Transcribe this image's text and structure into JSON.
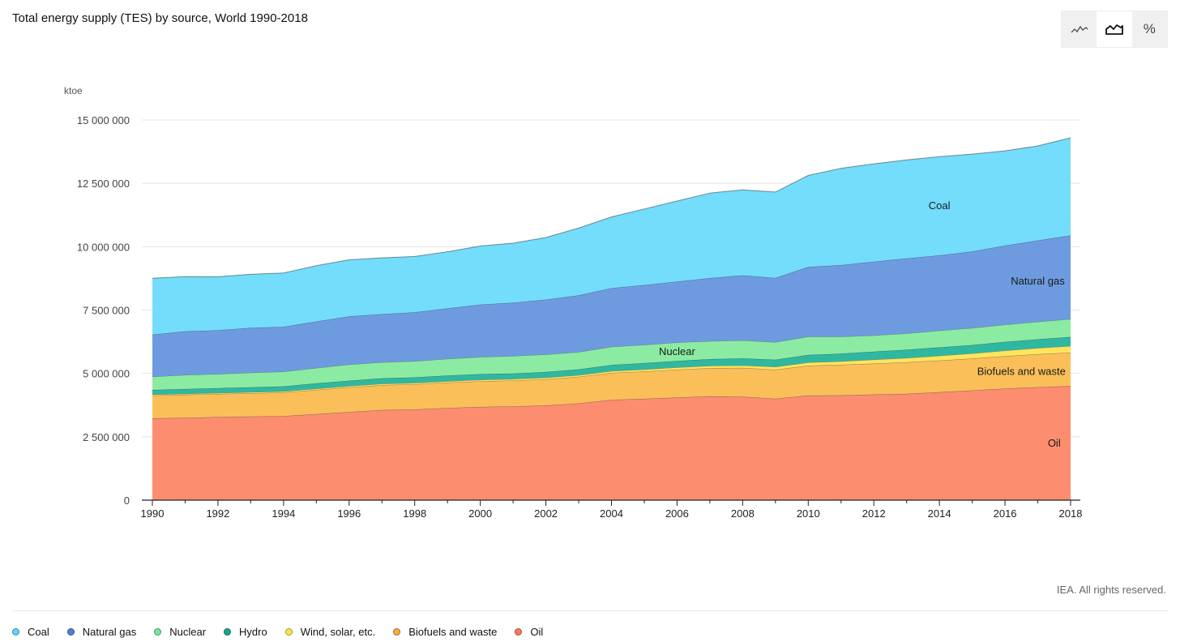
{
  "title": "Total energy supply (TES) by source, World 1990-2018",
  "toggle": {
    "icons": [
      "line-chart-icon",
      "area-chart-icon",
      "percent-icon"
    ],
    "percent_label": "%",
    "active": "area-chart-icon"
  },
  "credit": "IEA. All rights reserved.",
  "chart_data": {
    "type": "area",
    "stacked": true,
    "title": "Total energy supply (TES) by source, World 1990-2018",
    "unit_label": "ktoe",
    "xlabel": "",
    "ylabel": "ktoe",
    "xlim": [
      1990,
      2018
    ],
    "ylim": [
      0,
      15000000
    ],
    "x": [
      1990,
      1991,
      1992,
      1993,
      1994,
      1995,
      1996,
      1997,
      1998,
      1999,
      2000,
      2001,
      2002,
      2003,
      2004,
      2005,
      2006,
      2007,
      2008,
      2009,
      2010,
      2011,
      2012,
      2013,
      2014,
      2015,
      2016,
      2017,
      2018
    ],
    "x_ticks": [
      "1990",
      "1992",
      "1994",
      "1996",
      "1998",
      "2000",
      "2002",
      "2004",
      "2006",
      "2008",
      "2010",
      "2012",
      "2014",
      "2016",
      "2018"
    ],
    "y_ticks": [
      0,
      2500000,
      5000000,
      7500000,
      10000000,
      12500000,
      15000000
    ],
    "y_tick_labels": [
      "0",
      "2 500 000",
      "5 000 000",
      "7 500 000",
      "10 000 000",
      "12 500 000",
      "15 000 000"
    ],
    "grid": true,
    "legend_position": "bottom",
    "series": [
      {
        "name": "Oil",
        "color": "#fc8d6e",
        "values": [
          3230000,
          3250000,
          3280000,
          3300000,
          3320000,
          3400000,
          3480000,
          3560000,
          3580000,
          3640000,
          3680000,
          3700000,
          3740000,
          3820000,
          3960000,
          4000000,
          4050000,
          4100000,
          4080000,
          4000000,
          4130000,
          4140000,
          4170000,
          4200000,
          4260000,
          4330000,
          4400000,
          4460000,
          4500000
        ]
      },
      {
        "name": "Biofuels and waste",
        "color": "#fbbf5a",
        "values": [
          900000,
          910000,
          910000,
          920000,
          930000,
          950000,
          970000,
          980000,
          990000,
          1000000,
          1010000,
          1020000,
          1030000,
          1050000,
          1060000,
          1080000,
          1100000,
          1110000,
          1140000,
          1150000,
          1180000,
          1200000,
          1220000,
          1240000,
          1250000,
          1260000,
          1280000,
          1300000,
          1320000
        ]
      },
      {
        "name": "Wind, solar, etc.",
        "color": "#ffe55c",
        "values": [
          40000,
          40000,
          42000,
          44000,
          46000,
          48000,
          50000,
          52000,
          54000,
          56000,
          58000,
          60000,
          62000,
          66000,
          72000,
          78000,
          85000,
          92000,
          100000,
          110000,
          125000,
          140000,
          155000,
          170000,
          185000,
          200000,
          220000,
          240000,
          260000
        ]
      },
      {
        "name": "Hydro",
        "color": "#2fb8a0",
        "values": [
          180000,
          185000,
          188000,
          192000,
          196000,
          210000,
          214000,
          218000,
          220000,
          222000,
          225000,
          220000,
          225000,
          226000,
          242000,
          250000,
          258000,
          262000,
          273000,
          278000,
          296000,
          300000,
          315000,
          327000,
          335000,
          333000,
          343000,
          348000,
          360000
        ]
      },
      {
        "name": "Nuclear",
        "color": "#8ceba2",
        "values": [
          525000,
          555000,
          555000,
          575000,
          580000,
          610000,
          640000,
          630000,
          640000,
          660000,
          675000,
          690000,
          695000,
          680000,
          720000,
          720000,
          730000,
          710000,
          710000,
          700000,
          720000,
          675000,
          640000,
          645000,
          660000,
          670000,
          680000,
          690000,
          707000
        ]
      },
      {
        "name": "Natural gas",
        "color": "#6e9be0",
        "values": [
          1660000,
          1720000,
          1730000,
          1770000,
          1770000,
          1830000,
          1900000,
          1900000,
          1930000,
          1990000,
          2070000,
          2100000,
          2160000,
          2240000,
          2310000,
          2360000,
          2400000,
          2490000,
          2570000,
          2530000,
          2750000,
          2820000,
          2910000,
          2960000,
          2970000,
          3020000,
          3120000,
          3210000,
          3300000
        ]
      },
      {
        "name": "Coal",
        "color": "#73ddfb",
        "values": [
          2220000,
          2160000,
          2110000,
          2110000,
          2120000,
          2200000,
          2230000,
          2220000,
          2200000,
          2230000,
          2310000,
          2350000,
          2450000,
          2650000,
          2810000,
          3000000,
          3180000,
          3350000,
          3370000,
          3390000,
          3610000,
          3820000,
          3860000,
          3880000,
          3890000,
          3840000,
          3740000,
          3730000,
          3850000
        ]
      }
    ],
    "annotations": [
      {
        "text": "Coal",
        "series": "Coal",
        "x": 2014
      },
      {
        "text": "Natural gas",
        "series": "Natural gas",
        "x": 2017
      },
      {
        "text": "Nuclear",
        "series": "Nuclear",
        "x": 2006
      },
      {
        "text": "Biofuels and waste",
        "series": "Biofuels and waste",
        "x": 2016.5
      },
      {
        "text": "Oil",
        "series": "Oil",
        "x": 2017.5
      }
    ]
  },
  "legend": [
    {
      "label": "Coal",
      "color": "#5fd6f5"
    },
    {
      "label": "Natural gas",
      "color": "#4f7fd6"
    },
    {
      "label": "Nuclear",
      "color": "#79e49a"
    },
    {
      "label": "Hydro",
      "color": "#17a58f"
    },
    {
      "label": "Wind, solar, etc.",
      "color": "#ffe541"
    },
    {
      "label": "Biofuels and waste",
      "color": "#f8ae3c"
    },
    {
      "label": "Oil",
      "color": "#f87a58"
    }
  ]
}
